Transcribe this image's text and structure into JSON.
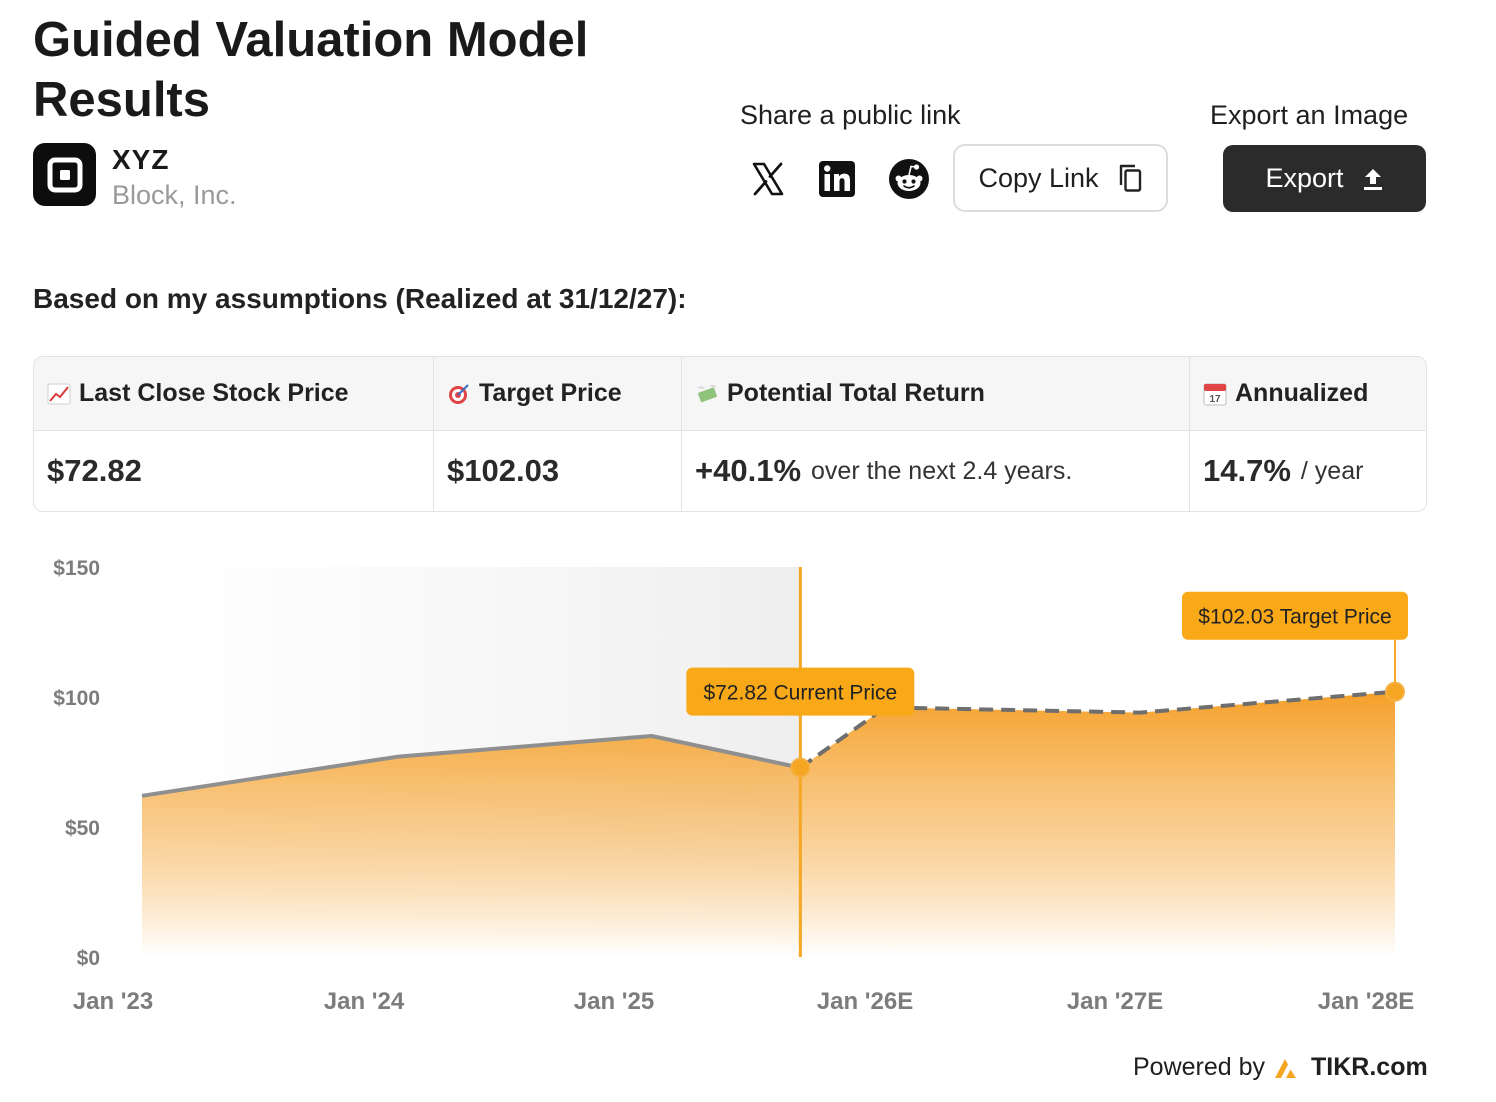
{
  "header": {
    "title": "Guided Valuation Model Results",
    "ticker": "XYZ",
    "company": "Block, Inc."
  },
  "share": {
    "label": "Share a public link",
    "copy_label": "Copy Link",
    "icons": [
      "x-icon",
      "linkedin-icon",
      "reddit-icon",
      "copy-icon"
    ]
  },
  "export": {
    "label": "Export an Image",
    "button_label": "Export",
    "icon": "upload-icon"
  },
  "assumptions_text": "Based on my assumptions (Realized at 31/12/27):",
  "results": {
    "headers": [
      "Last Close Stock Price",
      "Target Price",
      "Potential Total Return",
      "Annualized"
    ],
    "last_close": "$72.82",
    "target": "$102.03",
    "return_value": "+40.1%",
    "return_suffix": "over the next 2.4 years.",
    "annualized_value": "14.7%",
    "annualized_suffix": "/ year"
  },
  "colors": {
    "accent": "#f5a623",
    "accent_dark": "#f09a0a",
    "dark": "#2b2b2b",
    "historical_line": "#8f8f8f"
  },
  "chart_data": {
    "type": "area",
    "x_tick_labels": [
      "Jan '23",
      "Jan '24",
      "Jan '25",
      "Jan '26E",
      "Jan '27E",
      "Jan '28E"
    ],
    "y_tick_labels": [
      "$150",
      "$100",
      "$50",
      "$0"
    ],
    "ylim": [
      0,
      150
    ],
    "historical": {
      "x": [
        "2023-01",
        "2024-01",
        "2025-01",
        "2025-08"
      ],
      "y": [
        62,
        77,
        85,
        72.82
      ]
    },
    "forecast": {
      "x": [
        "2025-08",
        "2025-12",
        "2026-12",
        "2027-12"
      ],
      "y": [
        72.82,
        96,
        94,
        102.03
      ]
    },
    "annotations": [
      {
        "label": "$72.82 Current Price",
        "x": "2025-08",
        "y": 72.82
      },
      {
        "label": "$102.03 Target Price",
        "x": "2027-12",
        "y": 102.03
      }
    ]
  },
  "footer": {
    "powered_by": "Powered by",
    "brand": "TIKR.com"
  }
}
